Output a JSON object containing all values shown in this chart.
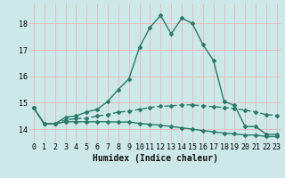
{
  "xlabel": "Humidex (Indice chaleur)",
  "x": [
    0,
    1,
    2,
    3,
    4,
    5,
    6,
    7,
    8,
    9,
    10,
    11,
    12,
    13,
    14,
    15,
    16,
    17,
    18,
    19,
    20,
    21,
    22,
    23
  ],
  "line1": [
    14.8,
    14.2,
    14.2,
    14.45,
    14.5,
    14.65,
    14.75,
    15.05,
    15.5,
    15.9,
    17.1,
    17.85,
    18.3,
    17.6,
    18.2,
    18.0,
    17.2,
    16.6,
    15.05,
    14.9,
    14.1,
    14.1,
    13.8,
    13.8
  ],
  "line2": [
    14.8,
    14.2,
    14.2,
    14.35,
    14.4,
    14.42,
    14.5,
    14.55,
    14.65,
    14.68,
    14.75,
    14.82,
    14.87,
    14.88,
    14.92,
    14.92,
    14.88,
    14.85,
    14.82,
    14.78,
    14.72,
    14.65,
    14.55,
    14.52
  ],
  "line3": [
    14.8,
    14.2,
    14.2,
    14.28,
    14.28,
    14.28,
    14.28,
    14.28,
    14.27,
    14.27,
    14.22,
    14.18,
    14.15,
    14.1,
    14.05,
    14.0,
    13.95,
    13.9,
    13.85,
    13.82,
    13.78,
    13.78,
    13.72,
    13.72
  ],
  "line_color": "#2a7a6a",
  "bg_color": "#cce8e8",
  "grid_color_v": "#e8b8b8",
  "grid_color_h": "#e8b8b8",
  "ylim": [
    13.5,
    18.75
  ],
  "xlim": [
    -0.5,
    23.5
  ],
  "yticks": [
    14,
    15,
    16,
    17,
    18
  ],
  "marker": "D",
  "marker_size": 2.0,
  "linewidth": 1.0,
  "xlabel_fontsize": 7,
  "tick_fontsize": 6
}
